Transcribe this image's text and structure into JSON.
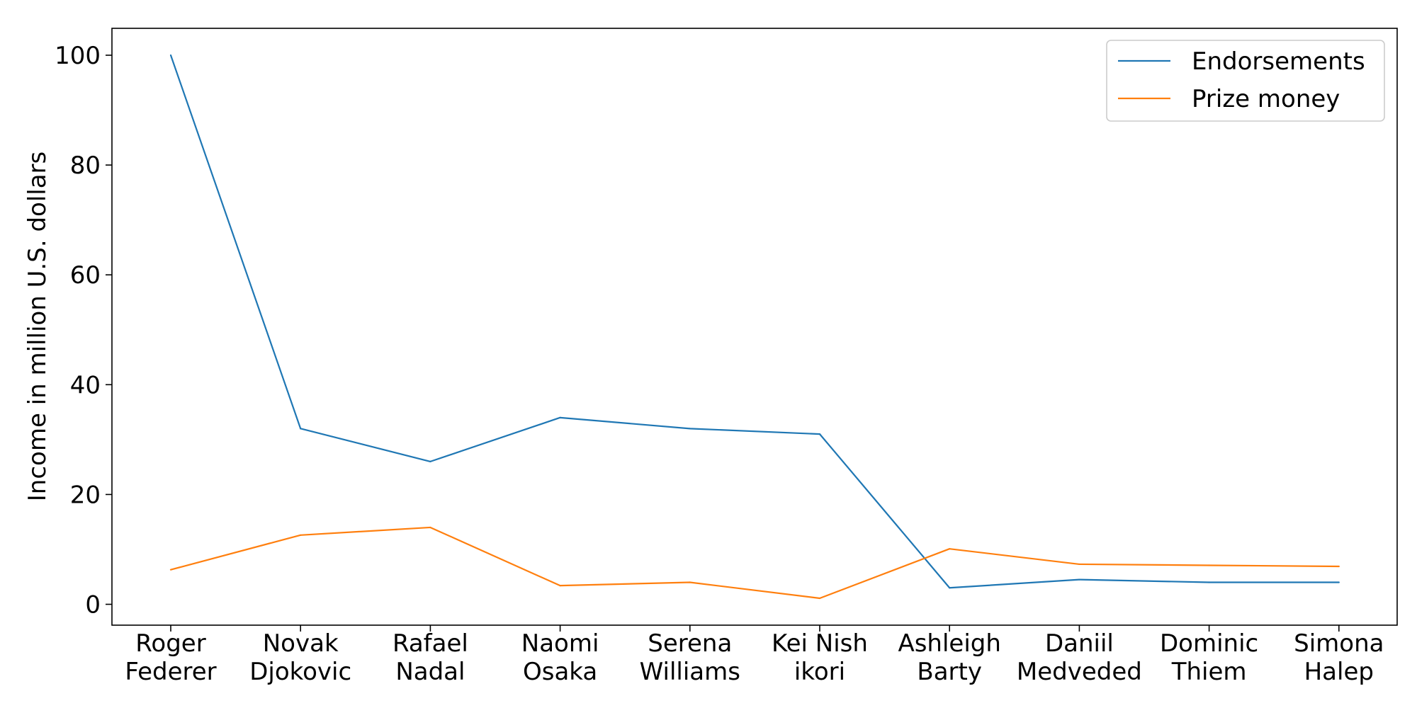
{
  "chart_data": {
    "type": "line",
    "title": "",
    "xlabel": "",
    "ylabel": "Income in million U.S. dollars",
    "categories": [
      [
        "Roger",
        "Federer"
      ],
      [
        "Novak",
        "Djokovic"
      ],
      [
        "Rafael",
        "Nadal"
      ],
      [
        "Naomi",
        "Osaka"
      ],
      [
        "Serena",
        "Williams"
      ],
      [
        "Kei Nish",
        "ikori"
      ],
      [
        "Ashleigh",
        "Barty"
      ],
      [
        "Daniil",
        "Medveded"
      ],
      [
        "Dominic",
        "Thiem"
      ],
      [
        "Simona",
        "Halep"
      ]
    ],
    "series": [
      {
        "name": "Endorsements",
        "color": "#1f77b4",
        "values": [
          100,
          32,
          26,
          34,
          32,
          31,
          3,
          4.5,
          4,
          4
        ]
      },
      {
        "name": "Prize money",
        "color": "#ff7f0e",
        "values": [
          6.3,
          12.6,
          14,
          3.4,
          4,
          1.1,
          10.1,
          7.3,
          7.1,
          6.9
        ]
      }
    ],
    "ylim": [
      -3.8,
      104.9
    ],
    "yticks": [
      0,
      20,
      40,
      60,
      80,
      100
    ],
    "grid": false,
    "legend_position": "top-right"
  }
}
